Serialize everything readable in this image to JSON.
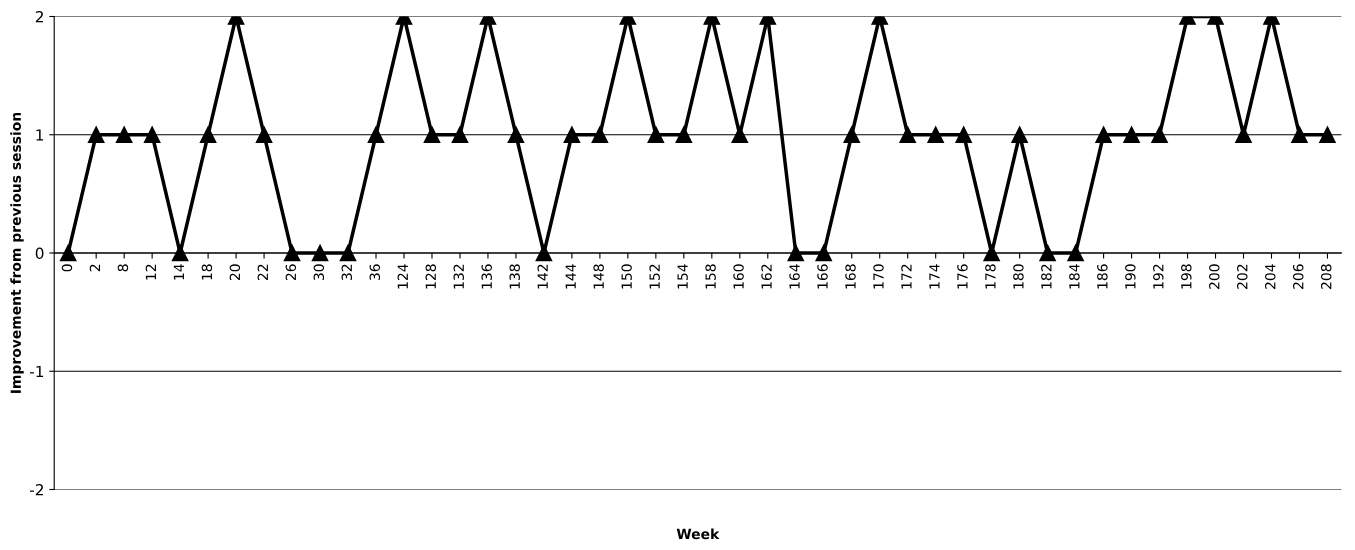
{
  "chart_data": {
    "type": "line",
    "xlabel": "Week",
    "ylabel": "Improvement from previous session",
    "categories": [
      "0",
      "2",
      "8",
      "12",
      "14",
      "18",
      "20",
      "22",
      "26",
      "30",
      "32",
      "36",
      "124",
      "128",
      "132",
      "136",
      "138",
      "142",
      "144",
      "148",
      "150",
      "152",
      "154",
      "158",
      "160",
      "162",
      "164",
      "166",
      "168",
      "170",
      "172",
      "174",
      "176",
      "178",
      "180",
      "182",
      "184",
      "186",
      "190",
      "192",
      "198",
      "200",
      "202",
      "204",
      "206",
      "208"
    ],
    "series": [
      {
        "color": "#000000",
        "values": [
          0,
          1,
          1,
          1,
          0,
          1,
          2,
          1,
          0,
          0,
          0,
          1,
          2,
          1,
          1,
          2,
          1,
          0,
          1,
          1,
          2,
          1,
          1,
          2,
          1,
          2,
          0,
          0,
          1,
          2,
          1,
          1,
          1,
          0,
          1,
          0,
          0,
          1,
          1,
          1,
          2,
          2,
          1,
          2,
          1,
          1
        ]
      }
    ],
    "ylim": [
      -2,
      2
    ],
    "yticks": [
      -2,
      -1,
      0,
      1,
      2
    ],
    "grid": "y",
    "marker": "triangle",
    "line_style": "solid",
    "legend": false
  }
}
